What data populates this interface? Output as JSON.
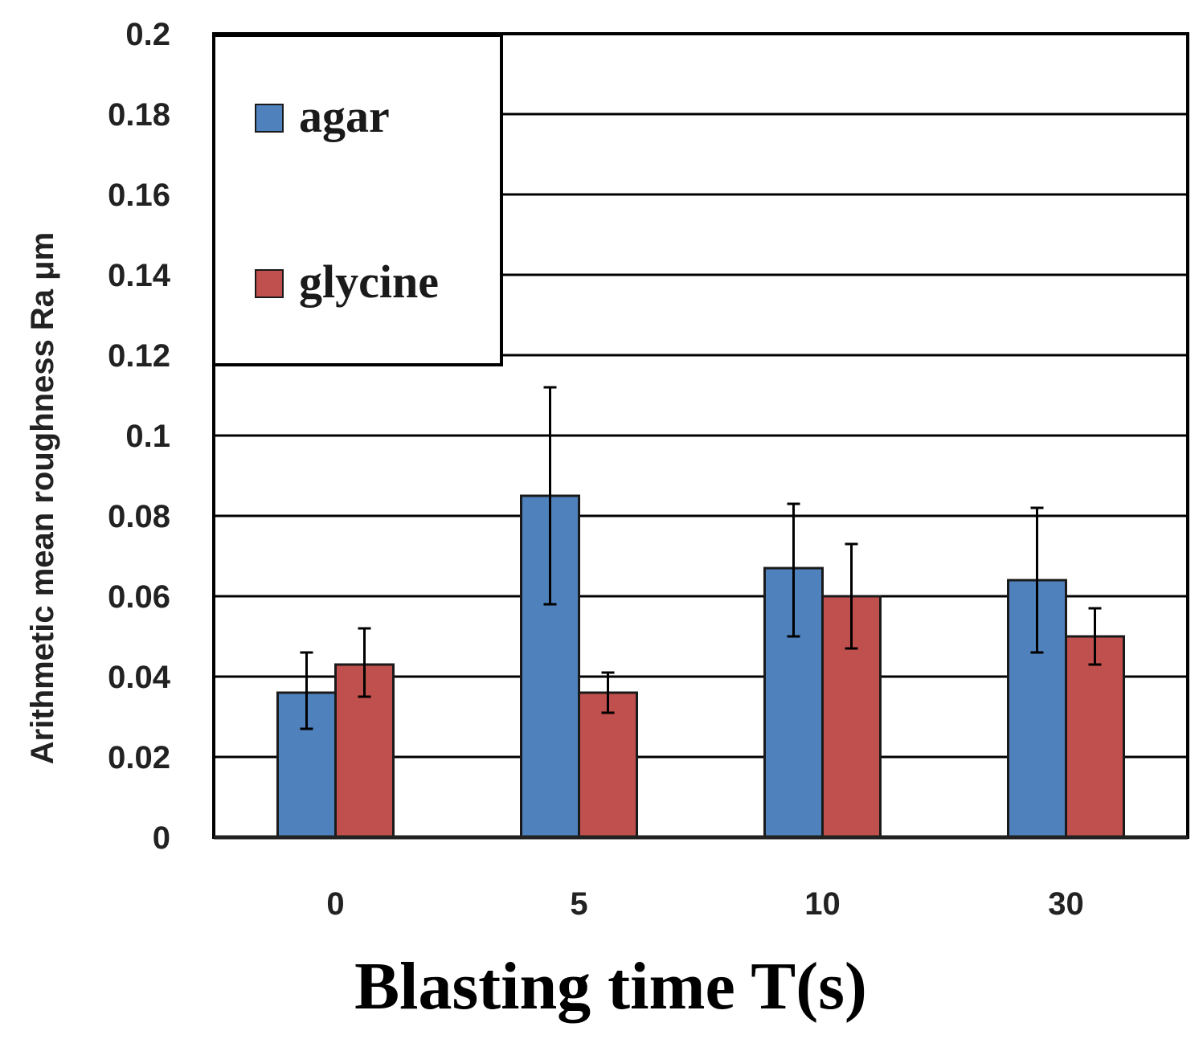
{
  "chart_data": {
    "type": "bar",
    "title": "",
    "xlabel": "Blasting time T(s)",
    "ylabel": "Arithmetic mean roughness Ra μm",
    "categories": [
      "0",
      "5",
      "10",
      "30"
    ],
    "ylim": [
      0,
      0.2
    ],
    "yticks": [
      0,
      0.02,
      0.04,
      0.06,
      0.08,
      0.1,
      0.12,
      0.14,
      0.16,
      0.18,
      0.2
    ],
    "ytick_labels": [
      "0",
      "0.02",
      "0.04",
      "0.06",
      "0.08",
      "0.1",
      "0.12",
      "0.14",
      "0.16",
      "0.18",
      "0.2"
    ],
    "grid": true,
    "legend_position": "top-left",
    "series": [
      {
        "name": "agar",
        "color": "#4f81bd",
        "values": [
          0.036,
          0.085,
          0.067,
          0.064
        ],
        "error_low": [
          0.027,
          0.058,
          0.05,
          0.046
        ],
        "error_high": [
          0.046,
          0.112,
          0.083,
          0.082
        ]
      },
      {
        "name": "glycine",
        "color": "#c0504d",
        "values": [
          0.043,
          0.036,
          0.06,
          0.05
        ],
        "error_low": [
          0.035,
          0.031,
          0.047,
          0.043
        ],
        "error_high": [
          0.052,
          0.041,
          0.073,
          0.057
        ]
      }
    ]
  }
}
